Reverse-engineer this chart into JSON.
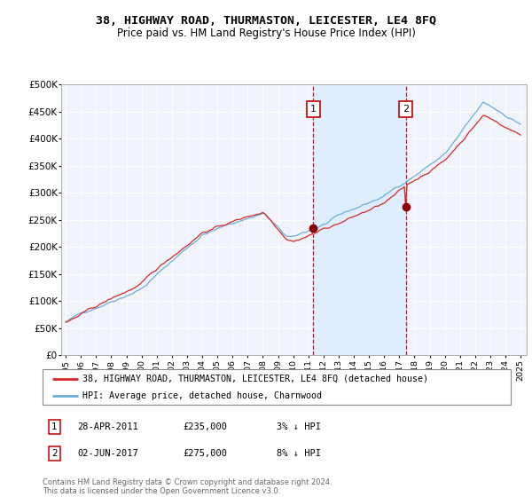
{
  "title": "38, HIGHWAY ROAD, THURMASTON, LEICESTER, LE4 8FQ",
  "subtitle": "Price paid vs. HM Land Registry's House Price Index (HPI)",
  "hpi_color": "#6baed6",
  "price_color": "#d62728",
  "shade_color": "#ddeeff",
  "bg_color": "#f0f4fa",
  "ylim": [
    0,
    500000
  ],
  "ytick_labels": [
    "£0",
    "£50K",
    "£100K",
    "£150K",
    "£200K",
    "£250K",
    "£300K",
    "£350K",
    "£400K",
    "£450K",
    "£500K"
  ],
  "yticks": [
    0,
    50000,
    100000,
    150000,
    200000,
    250000,
    300000,
    350000,
    400000,
    450000,
    500000
  ],
  "marker1_year": 2011.33,
  "marker2_year": 2017.42,
  "marker1_price": 235000,
  "marker2_price": 275000,
  "legend_line1": "38, HIGHWAY ROAD, THURMASTON, LEICESTER, LE4 8FQ (detached house)",
  "legend_line2": "HPI: Average price, detached house, Charnwood",
  "ann1_date": "28-APR-2011",
  "ann1_price": "£235,000",
  "ann1_pct": "3% ↓ HPI",
  "ann2_date": "02-JUN-2017",
  "ann2_price": "£275,000",
  "ann2_pct": "8% ↓ HPI",
  "footer": "Contains HM Land Registry data © Crown copyright and database right 2024.\nThis data is licensed under the Open Government Licence v3.0."
}
